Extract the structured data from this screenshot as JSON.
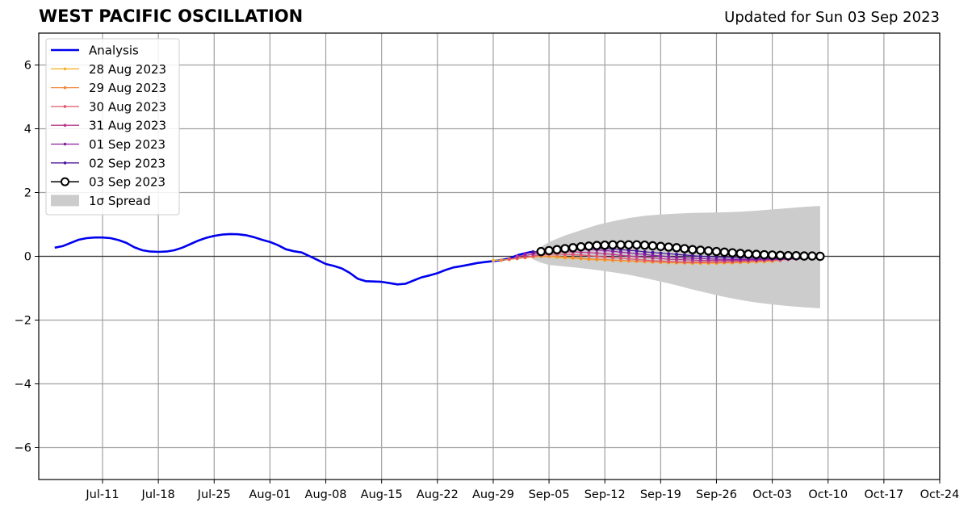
{
  "header": {
    "title": "WEST PACIFIC OSCILLATION",
    "updated": "Updated for Sun 03 Sep 2023"
  },
  "chart_data": {
    "type": "line",
    "title": "WEST PACIFIC OSCILLATION",
    "subtitle": "Updated for Sun 03 Sep 2023",
    "xlim": [
      "2023-07-03",
      "2023-10-24"
    ],
    "ylim": [
      -7,
      7
    ],
    "x_ticks": [
      {
        "date": "2023-07-11",
        "label": "Jul-11"
      },
      {
        "date": "2023-07-18",
        "label": "Jul-18"
      },
      {
        "date": "2023-07-25",
        "label": "Jul-25"
      },
      {
        "date": "2023-08-01",
        "label": "Aug-01"
      },
      {
        "date": "2023-08-08",
        "label": "Aug-08"
      },
      {
        "date": "2023-08-15",
        "label": "Aug-15"
      },
      {
        "date": "2023-08-22",
        "label": "Aug-22"
      },
      {
        "date": "2023-08-29",
        "label": "Aug-29"
      },
      {
        "date": "2023-09-05",
        "label": "Sep-05"
      },
      {
        "date": "2023-09-12",
        "label": "Sep-12"
      },
      {
        "date": "2023-09-19",
        "label": "Sep-19"
      },
      {
        "date": "2023-09-26",
        "label": "Sep-26"
      },
      {
        "date": "2023-10-03",
        "label": "Oct-03"
      },
      {
        "date": "2023-10-10",
        "label": "Oct-10"
      },
      {
        "date": "2023-10-17",
        "label": "Oct-17"
      },
      {
        "date": "2023-10-24",
        "label": "Oct-24"
      }
    ],
    "y_ticks": [
      {
        "value": 6,
        "label": "6"
      },
      {
        "value": 4,
        "label": "4"
      },
      {
        "value": 2,
        "label": "2"
      },
      {
        "value": 0,
        "label": "0"
      },
      {
        "value": -2,
        "label": "−2"
      },
      {
        "value": -4,
        "label": "−4"
      },
      {
        "value": -6,
        "label": "−6"
      }
    ],
    "grid": true,
    "legend_position": "top-left",
    "analysis": {
      "name": "Analysis",
      "color": "#0000ee",
      "points": [
        [
          "2023-07-05",
          0.27
        ],
        [
          "2023-07-06",
          0.32
        ],
        [
          "2023-07-07",
          0.42
        ],
        [
          "2023-07-08",
          0.52
        ],
        [
          "2023-07-09",
          0.57
        ],
        [
          "2023-07-10",
          0.59
        ],
        [
          "2023-07-11",
          0.59
        ],
        [
          "2023-07-12",
          0.57
        ],
        [
          "2023-07-13",
          0.51
        ],
        [
          "2023-07-14",
          0.42
        ],
        [
          "2023-07-15",
          0.28
        ],
        [
          "2023-07-16",
          0.19
        ],
        [
          "2023-07-17",
          0.15
        ],
        [
          "2023-07-18",
          0.14
        ],
        [
          "2023-07-19",
          0.15
        ],
        [
          "2023-07-20",
          0.19
        ],
        [
          "2023-07-21",
          0.27
        ],
        [
          "2023-07-22",
          0.38
        ],
        [
          "2023-07-23",
          0.49
        ],
        [
          "2023-07-24",
          0.58
        ],
        [
          "2023-07-25",
          0.64
        ],
        [
          "2023-07-26",
          0.68
        ],
        [
          "2023-07-27",
          0.7
        ],
        [
          "2023-07-28",
          0.69
        ],
        [
          "2023-07-29",
          0.66
        ],
        [
          "2023-07-30",
          0.6
        ],
        [
          "2023-07-31",
          0.52
        ],
        [
          "2023-08-01",
          0.45
        ],
        [
          "2023-08-02",
          0.35
        ],
        [
          "2023-08-03",
          0.22
        ],
        [
          "2023-08-04",
          0.16
        ],
        [
          "2023-08-05",
          0.12
        ],
        [
          "2023-08-06",
          0.0
        ],
        [
          "2023-08-07",
          -0.12
        ],
        [
          "2023-08-08",
          -0.24
        ],
        [
          "2023-08-09",
          -0.3
        ],
        [
          "2023-08-10",
          -0.38
        ],
        [
          "2023-08-11",
          -0.52
        ],
        [
          "2023-08-12",
          -0.7
        ],
        [
          "2023-08-13",
          -0.78
        ],
        [
          "2023-08-14",
          -0.79
        ],
        [
          "2023-08-15",
          -0.8
        ],
        [
          "2023-08-16",
          -0.84
        ],
        [
          "2023-08-17",
          -0.88
        ],
        [
          "2023-08-18",
          -0.86
        ],
        [
          "2023-08-19",
          -0.76
        ],
        [
          "2023-08-20",
          -0.66
        ],
        [
          "2023-08-21",
          -0.6
        ],
        [
          "2023-08-22",
          -0.53
        ],
        [
          "2023-08-23",
          -0.43
        ],
        [
          "2023-08-24",
          -0.35
        ],
        [
          "2023-08-25",
          -0.31
        ],
        [
          "2023-08-26",
          -0.26
        ],
        [
          "2023-08-27",
          -0.21
        ],
        [
          "2023-08-28",
          -0.18
        ],
        [
          "2023-08-29",
          -0.15
        ],
        [
          "2023-08-30",
          -0.12
        ],
        [
          "2023-08-31",
          -0.07
        ],
        [
          "2023-09-01",
          0.03
        ],
        [
          "2023-09-02",
          0.1
        ],
        [
          "2023-09-03",
          0.15
        ]
      ]
    },
    "forecasts": [
      {
        "name": "28 Aug 2023",
        "color": "#f5b32e",
        "start": "2023-08-29",
        "end": "2023-10-03",
        "values": [
          -0.13,
          -0.12,
          -0.1,
          -0.07,
          -0.04,
          -0.02,
          0.0,
          -0.01,
          -0.03,
          -0.05,
          -0.06,
          -0.08,
          -0.1,
          -0.11,
          -0.12,
          -0.13,
          -0.14,
          -0.15,
          -0.16,
          -0.17,
          -0.18,
          -0.19,
          -0.2,
          -0.21,
          -0.21,
          -0.22,
          -0.22,
          -0.22,
          -0.22,
          -0.21,
          -0.21,
          -0.2,
          -0.19,
          -0.18,
          -0.17,
          -0.16
        ]
      },
      {
        "name": "29 Aug 2023",
        "color": "#f0883a",
        "start": "2023-08-30",
        "end": "2023-10-04",
        "values": [
          -0.12,
          -0.1,
          -0.07,
          -0.04,
          -0.01,
          0.01,
          0.01,
          0.0,
          -0.02,
          -0.04,
          -0.06,
          -0.08,
          -0.09,
          -0.1,
          -0.12,
          -0.13,
          -0.14,
          -0.15,
          -0.16,
          -0.17,
          -0.18,
          -0.19,
          -0.19,
          -0.2,
          -0.2,
          -0.2,
          -0.2,
          -0.2,
          -0.19,
          -0.19,
          -0.18,
          -0.17,
          -0.16,
          -0.15,
          -0.14,
          -0.13
        ]
      },
      {
        "name": "30 Aug 2023",
        "color": "#e0566d",
        "start": "2023-08-31",
        "end": "2023-10-05",
        "values": [
          -0.08,
          -0.05,
          -0.02,
          0.01,
          0.04,
          0.06,
          0.07,
          0.06,
          0.05,
          0.04,
          0.02,
          0.0,
          -0.02,
          -0.04,
          -0.06,
          -0.08,
          -0.1,
          -0.12,
          -0.14,
          -0.15,
          -0.16,
          -0.17,
          -0.18,
          -0.18,
          -0.18,
          -0.18,
          -0.18,
          -0.17,
          -0.17,
          -0.16,
          -0.15,
          -0.14,
          -0.13,
          -0.12,
          -0.11,
          -0.1
        ]
      },
      {
        "name": "31 Aug 2023",
        "color": "#b8378a",
        "start": "2023-09-01",
        "end": "2023-10-06",
        "values": [
          0.0,
          0.03,
          0.06,
          0.09,
          0.11,
          0.13,
          0.14,
          0.14,
          0.13,
          0.12,
          0.1,
          0.08,
          0.06,
          0.03,
          0.01,
          -0.01,
          -0.03,
          -0.05,
          -0.07,
          -0.09,
          -0.1,
          -0.11,
          -0.12,
          -0.13,
          -0.13,
          -0.13,
          -0.13,
          -0.13,
          -0.13,
          -0.12,
          -0.12,
          -0.11,
          -0.1,
          -0.1,
          -0.09,
          -0.08
        ]
      },
      {
        "name": "01 Sep 2023",
        "color": "#8a1ea0",
        "start": "2023-09-02",
        "end": "2023-10-07",
        "values": [
          0.08,
          0.11,
          0.14,
          0.17,
          0.19,
          0.21,
          0.22,
          0.22,
          0.21,
          0.2,
          0.18,
          0.16,
          0.13,
          0.11,
          0.08,
          0.06,
          0.03,
          0.01,
          -0.01,
          -0.03,
          -0.05,
          -0.06,
          -0.07,
          -0.08,
          -0.09,
          -0.09,
          -0.1,
          -0.1,
          -0.1,
          -0.1,
          -0.09,
          -0.09,
          -0.09,
          -0.08,
          -0.08,
          -0.08
        ]
      },
      {
        "name": "02 Sep 2023",
        "color": "#4b1699",
        "start": "2023-09-03",
        "end": "2023-10-08",
        "values": [
          0.14,
          0.16,
          0.19,
          0.21,
          0.23,
          0.25,
          0.26,
          0.26,
          0.25,
          0.24,
          0.23,
          0.21,
          0.19,
          0.17,
          0.14,
          0.12,
          0.1,
          0.08,
          0.06,
          0.04,
          0.02,
          0.0,
          -0.01,
          -0.02,
          -0.03,
          -0.04,
          -0.05,
          -0.05,
          -0.06,
          -0.06,
          -0.06,
          -0.06,
          -0.06,
          -0.06,
          -0.06,
          -0.06
        ]
      },
      {
        "name": "03 Sep 2023",
        "color": "#000000",
        "start": "2023-09-04",
        "end": "2023-10-09",
        "values": [
          0.15,
          0.18,
          0.21,
          0.24,
          0.27,
          0.3,
          0.32,
          0.34,
          0.35,
          0.36,
          0.36,
          0.36,
          0.36,
          0.35,
          0.33,
          0.31,
          0.29,
          0.27,
          0.24,
          0.21,
          0.19,
          0.17,
          0.15,
          0.13,
          0.11,
          0.09,
          0.07,
          0.06,
          0.05,
          0.04,
          0.03,
          0.02,
          0.02,
          0.01,
          0.01,
          0.0
        ]
      }
    ],
    "spread": {
      "name": "1σ Spread",
      "color": "#cccccc",
      "start": "2023-09-03",
      "end": "2023-10-09",
      "upper": [
        [
          0,
          0.1
        ],
        [
          1,
          0.3
        ],
        [
          2,
          0.45
        ],
        [
          4,
          0.65
        ],
        [
          6,
          0.82
        ],
        [
          8,
          0.98
        ],
        [
          10,
          1.1
        ],
        [
          12,
          1.2
        ],
        [
          14,
          1.27
        ],
        [
          16,
          1.31
        ],
        [
          18,
          1.34
        ],
        [
          20,
          1.36
        ],
        [
          22,
          1.37
        ],
        [
          24,
          1.38
        ],
        [
          26,
          1.4
        ],
        [
          28,
          1.43
        ],
        [
          30,
          1.47
        ],
        [
          32,
          1.51
        ],
        [
          34,
          1.55
        ],
        [
          36,
          1.58
        ]
      ],
      "lower": [
        [
          0,
          -0.1
        ],
        [
          1,
          -0.2
        ],
        [
          2,
          -0.27
        ],
        [
          4,
          -0.32
        ],
        [
          6,
          -0.37
        ],
        [
          8,
          -0.43
        ],
        [
          10,
          -0.5
        ],
        [
          12,
          -0.58
        ],
        [
          14,
          -0.68
        ],
        [
          16,
          -0.79
        ],
        [
          18,
          -0.91
        ],
        [
          20,
          -1.04
        ],
        [
          22,
          -1.16
        ],
        [
          24,
          -1.27
        ],
        [
          26,
          -1.37
        ],
        [
          28,
          -1.45
        ],
        [
          30,
          -1.51
        ],
        [
          32,
          -1.56
        ],
        [
          34,
          -1.6
        ],
        [
          36,
          -1.63
        ]
      ]
    }
  }
}
